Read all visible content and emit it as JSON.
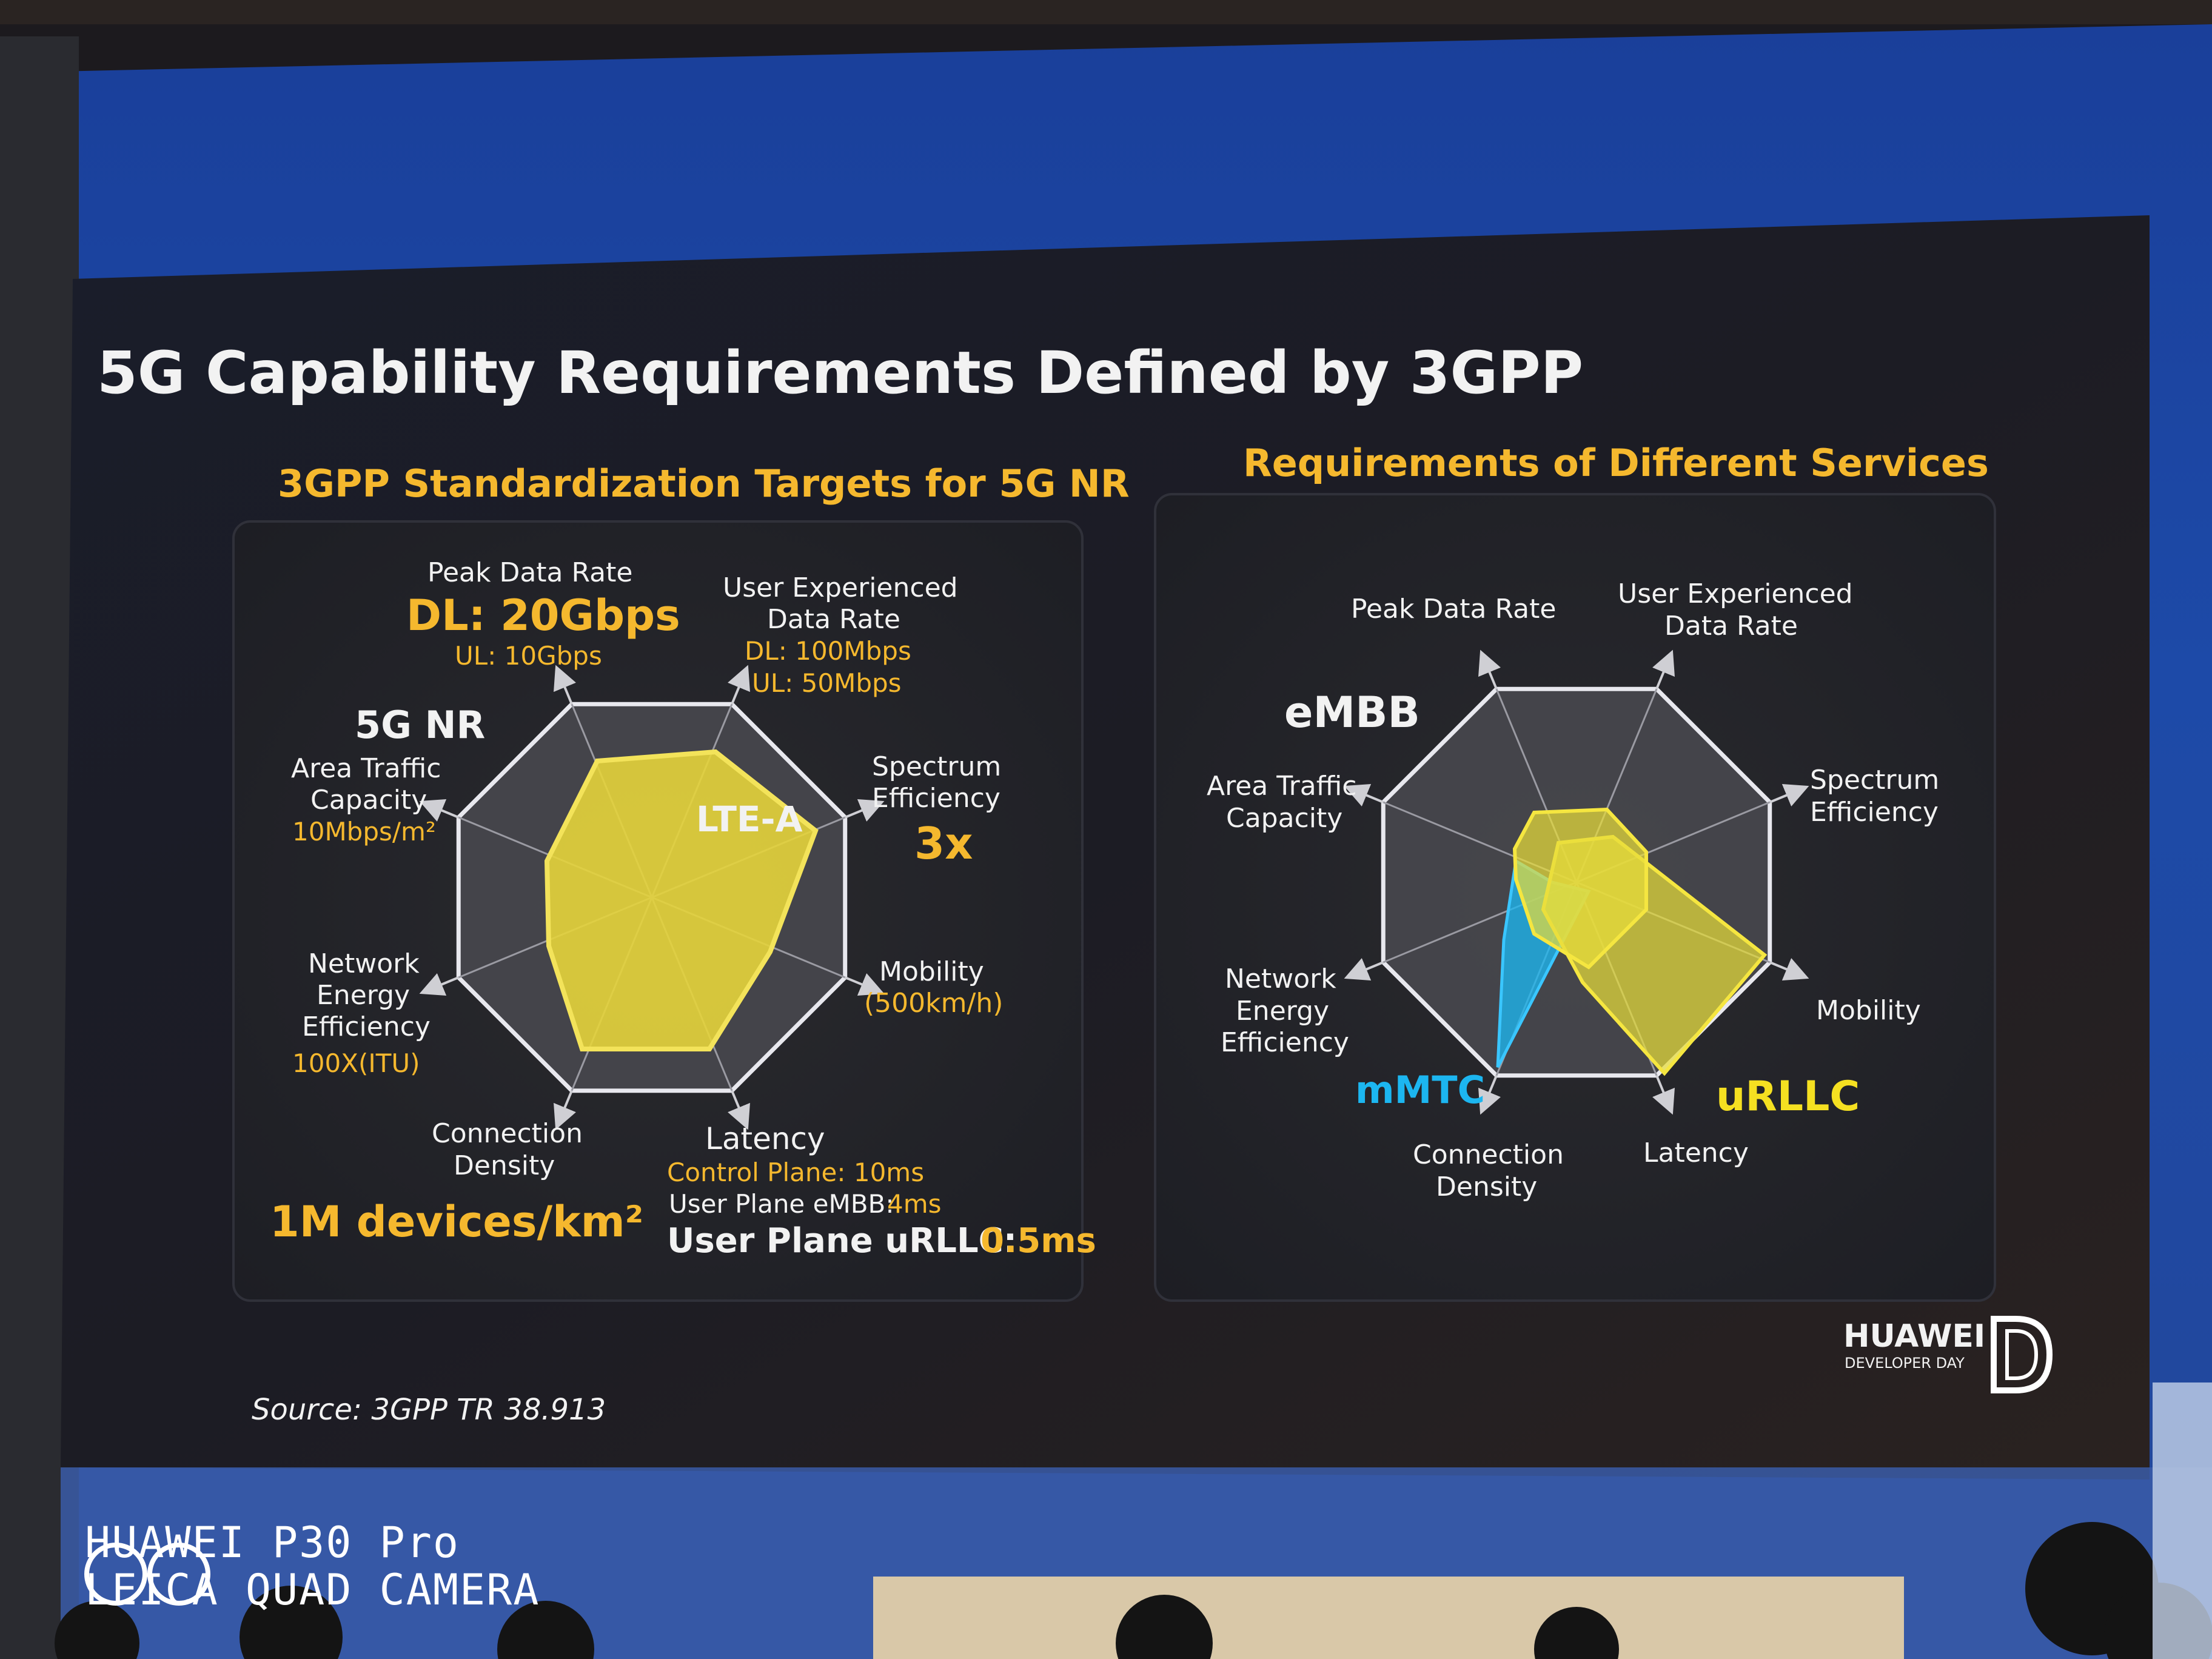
{
  "slide": {
    "title": "5G Capability Requirements Defined by 3GPP",
    "source": "Source: 3GPP TR 38.913",
    "brand": {
      "name": "HUAWEI",
      "sub": "DEVELOPER DAY"
    }
  },
  "left_panel": {
    "heading": "3GPP Standardization Targets for 5G NR",
    "labels": {
      "peak_title": "Peak Data Rate",
      "peak_dl": "DL: 20Gbps",
      "peak_ul": "UL: 10Gbps",
      "uedr_title_1": "User Experienced",
      "uedr_title_2": "Data Rate",
      "uedr_dl": "DL: 100Mbps",
      "uedr_ul": "UL: 50Mbps",
      "se_title_1": "Spectrum",
      "se_title_2": "Efficiency",
      "se_value": "3x",
      "mob_title": "Mobility",
      "mob_value": "(500km/h)",
      "lat_title": "Latency",
      "lat_cp": "Control Plane: 10ms",
      "lat_embb_label": "User Plane eMBB:",
      "lat_embb_value": "4ms",
      "lat_urllc_label": "User Plane uRLLC:",
      "lat_urllc_value": "0.5ms",
      "cd_title_1": "Connection",
      "cd_title_2": "Density",
      "cd_value": "1M devices/km²",
      "nee_title_1": "Network",
      "nee_title_2": "Energy",
      "nee_title_3": "Efficiency",
      "nee_value": "100X(ITU)",
      "atc_title_1": "Area Traffic",
      "atc_title_2": "Capacity",
      "atc_value": "10Mbps/m²",
      "outer_series": "5G NR",
      "inner_series": "LTE-A"
    }
  },
  "right_panel": {
    "heading": "Requirements of Different Services",
    "labels": {
      "peak": "Peak Data Rate",
      "uedr_1": "User Experienced",
      "uedr_2": "Data Rate",
      "se_1": "Spectrum",
      "se_2": "Efficiency",
      "mob": "Mobility",
      "lat": "Latency",
      "cd_1": "Connection",
      "cd_2": "Density",
      "nee_1": "Network",
      "nee_2": "Energy",
      "nee_3": "Efficiency",
      "atc_1": "Area Traffic",
      "atc_2": "Capacity",
      "embb": "eMBB",
      "mmtc": "mMTC",
      "urllc": "uRLLC"
    }
  },
  "camera_watermark": {
    "line1": "HUAWEI P30 Pro",
    "line2": "LEICA QUAD CAMERA"
  },
  "colors": {
    "title": "#f2f2f2",
    "heading": "#f5b82e",
    "lte": "#e8d23a",
    "embb": "#e8dd3a",
    "mmtc": "#1cb6f0",
    "urllc": "#f5e021"
  }
}
